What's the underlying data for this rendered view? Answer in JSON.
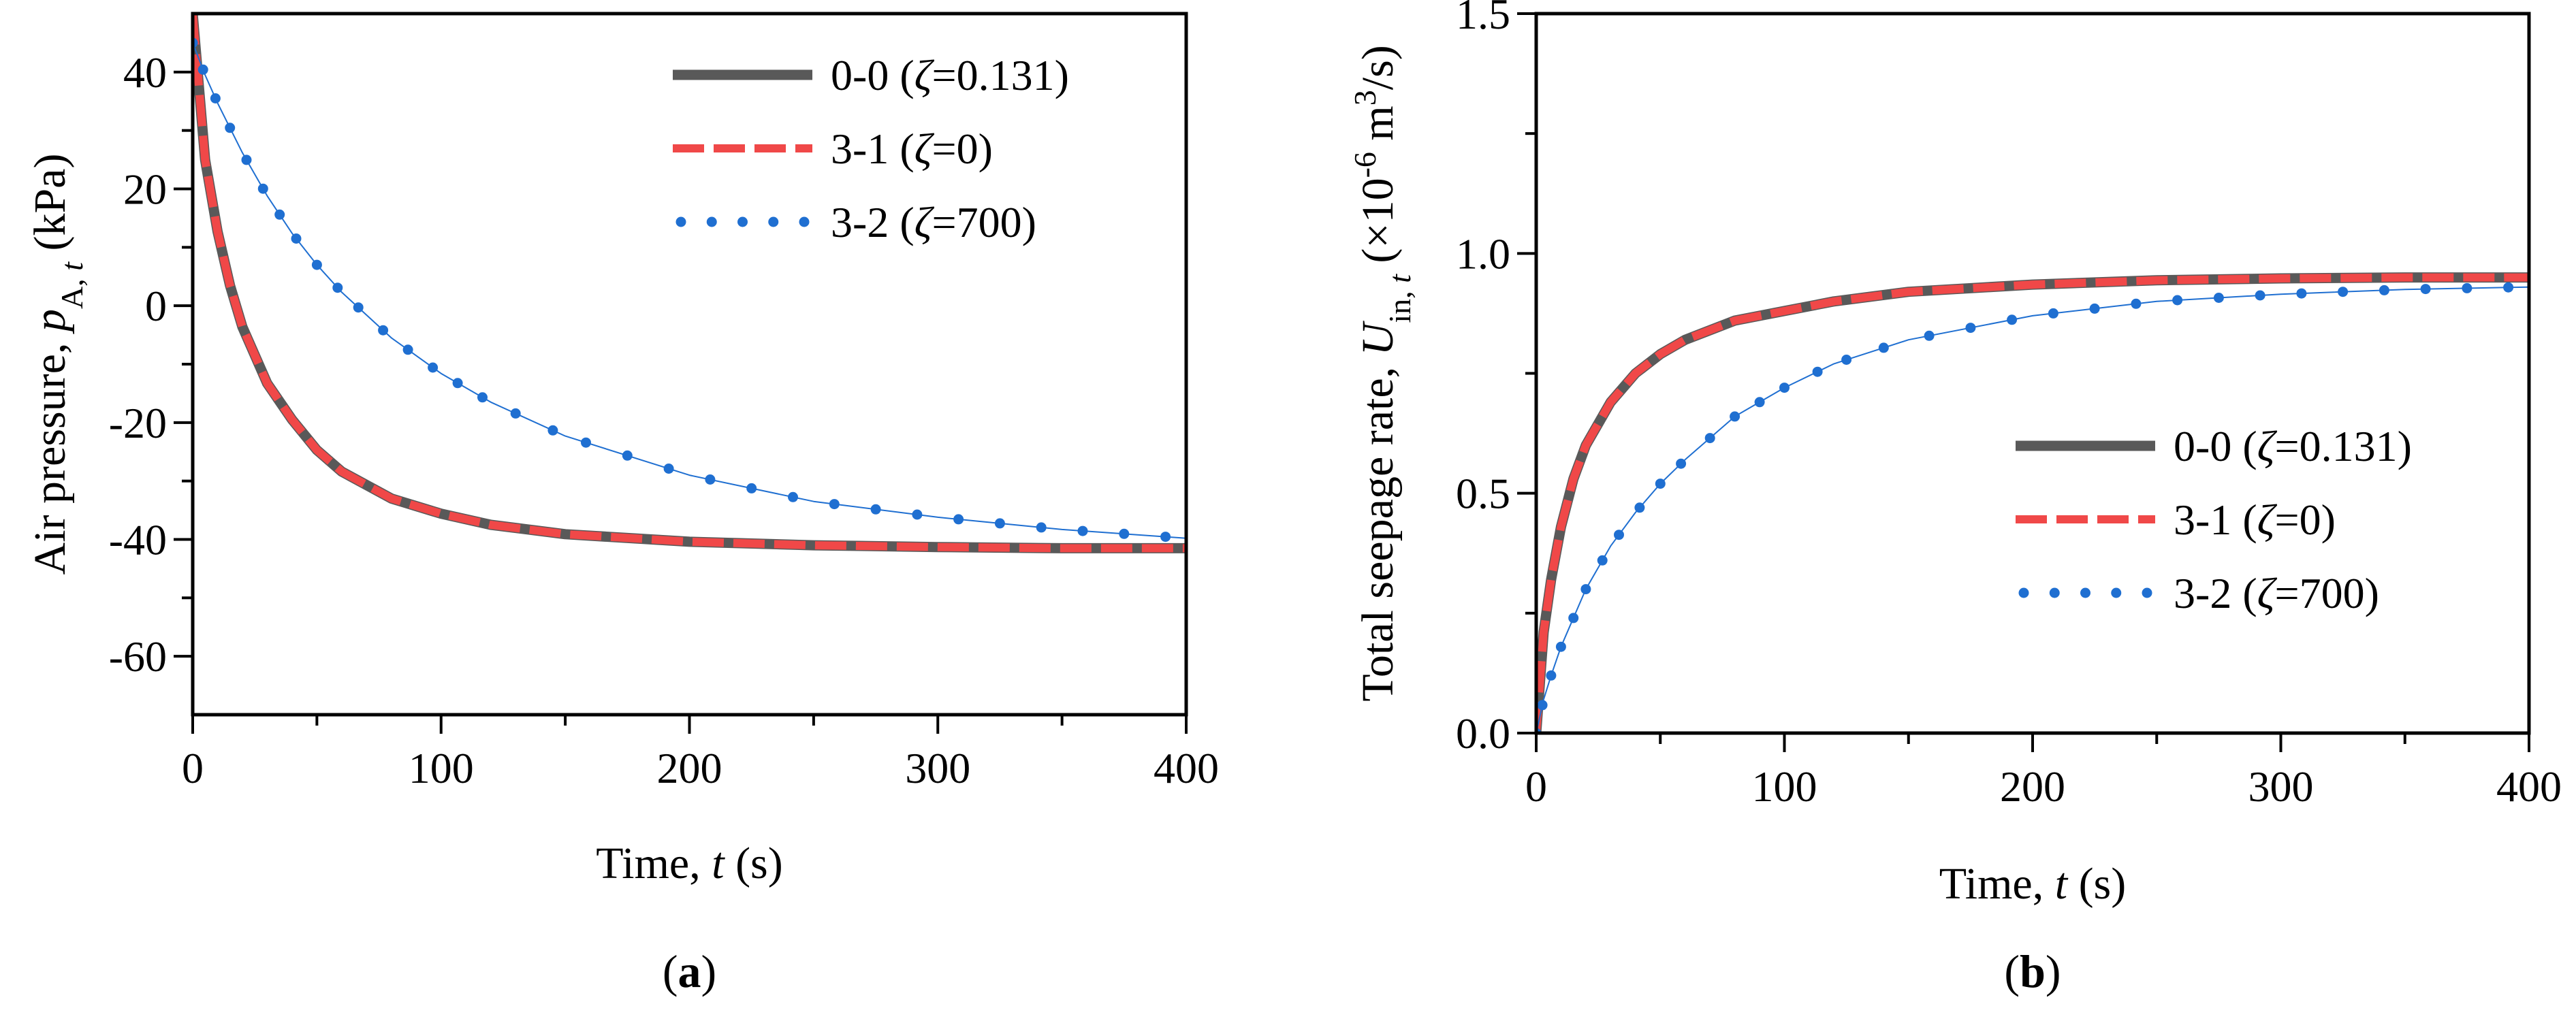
{
  "chart_data": [
    {
      "type": "line",
      "panel_label": "a",
      "xlabel": {
        "text": "Time, ",
        "var": "t",
        "unit": " (s)"
      },
      "ylabel": {
        "text": "Air pressure, ",
        "var": "p",
        "sub": "A, ",
        "sub_var": "t",
        "unit": " (kPa)"
      },
      "xlim": [
        0,
        400
      ],
      "ylim": [
        -70,
        50
      ],
      "xticks": [
        0,
        100,
        200,
        300,
        400
      ],
      "xtick_labels": [
        "0",
        "100",
        "200",
        "300",
        "400"
      ],
      "yticks": [
        -60,
        -40,
        -20,
        0,
        20,
        40
      ],
      "ytick_labels": [
        "-60",
        "-40",
        "-20",
        "0",
        "20",
        "40"
      ],
      "legend_position": "top-right",
      "series": [
        {
          "name": "0-0 (ζ=0.131)",
          "legend": {
            "prefix": "0-0 (",
            "var": "ζ",
            "suffix": "=0.131)"
          },
          "color": "#595959",
          "style": "solid",
          "x": [
            0,
            5,
            10,
            15,
            20,
            30,
            40,
            50,
            60,
            80,
            100,
            120,
            150,
            200,
            250,
            300,
            350,
            400
          ],
          "y": [
            50,
            25,
            12.7,
            3.5,
            -3.6,
            -13.3,
            -19.5,
            -24.7,
            -28.4,
            -33,
            -35.6,
            -37.5,
            -39.1,
            -40.4,
            -41,
            -41.3,
            -41.5,
            -41.5
          ]
        },
        {
          "name": "3-1 (ζ=0)",
          "legend": {
            "prefix": "3-1 (",
            "var": "ζ",
            "suffix": "=0)"
          },
          "color": "#f04848",
          "style": "dashed",
          "x": [
            0,
            5,
            10,
            15,
            20,
            30,
            40,
            50,
            60,
            80,
            100,
            120,
            150,
            200,
            250,
            300,
            350,
            400
          ],
          "y": [
            50,
            25,
            12.7,
            3.5,
            -3.6,
            -13.3,
            -19.5,
            -24.7,
            -28.4,
            -33,
            -35.6,
            -37.5,
            -39.1,
            -40.4,
            -41,
            -41.3,
            -41.5,
            -41.5
          ]
        },
        {
          "name": "3-2 (ζ=700)",
          "legend": {
            "prefix": "3-2 (",
            "var": "ζ",
            "suffix": "=700)"
          },
          "color": "#1f6fd1",
          "style": "dotted",
          "x": [
            0,
            5,
            10,
            20,
            30,
            40,
            50,
            60,
            80,
            100,
            120,
            150,
            200,
            250,
            300,
            350,
            400
          ],
          "y": [
            45,
            39.5,
            34.7,
            26.2,
            18.8,
            12.4,
            7,
            2.3,
            -5.5,
            -11.6,
            -16.5,
            -22.3,
            -29,
            -33.5,
            -36.2,
            -38.3,
            -39.8
          ]
        }
      ]
    },
    {
      "type": "line",
      "panel_label": "b",
      "xlabel": {
        "text": "Time, ",
        "var": "t",
        "unit": " (s)"
      },
      "ylabel": {
        "text": "Total seepage rate, ",
        "var": "U",
        "sub": "in, ",
        "sub_var": "t",
        "unit_pre": " (×10",
        "sup": "-6",
        "unit_mid": " m",
        "sup2": "3",
        "unit_post": "/s)"
      },
      "xlim": [
        0,
        400
      ],
      "ylim": [
        0,
        1.5
      ],
      "xticks": [
        0,
        100,
        200,
        300,
        400
      ],
      "xtick_labels": [
        "0",
        "100",
        "200",
        "300",
        "400"
      ],
      "yticks": [
        0,
        0.5,
        1.0,
        1.5
      ],
      "ytick_labels": [
        "0.0",
        "0.5",
        "1.0",
        "1.5"
      ],
      "legend_position": "center-right",
      "series": [
        {
          "name": "0-0 (ζ=0.131)",
          "legend": {
            "prefix": "0-0 (",
            "var": "ζ",
            "suffix": "=0.131)"
          },
          "color": "#595959",
          "style": "solid",
          "x": [
            0,
            3,
            6,
            10,
            15,
            20,
            30,
            40,
            50,
            60,
            80,
            100,
            120,
            150,
            200,
            250,
            300,
            350,
            400
          ],
          "y": [
            0,
            0.21,
            0.32,
            0.43,
            0.53,
            0.6,
            0.69,
            0.75,
            0.79,
            0.82,
            0.86,
            0.88,
            0.9,
            0.92,
            0.935,
            0.944,
            0.948,
            0.95,
            0.95
          ]
        },
        {
          "name": "3-1 (ζ=0)",
          "legend": {
            "prefix": "3-1 (",
            "var": "ζ",
            "suffix": "=0)"
          },
          "color": "#f04848",
          "style": "dashed",
          "x": [
            0,
            3,
            6,
            10,
            15,
            20,
            30,
            40,
            50,
            60,
            80,
            100,
            120,
            150,
            200,
            250,
            300,
            350,
            400
          ],
          "y": [
            0,
            0.21,
            0.32,
            0.43,
            0.53,
            0.6,
            0.69,
            0.75,
            0.79,
            0.82,
            0.86,
            0.88,
            0.9,
            0.92,
            0.935,
            0.944,
            0.948,
            0.95,
            0.95
          ]
        },
        {
          "name": "3-2 (ζ=700)",
          "legend": {
            "prefix": "3-2 (",
            "var": "ζ",
            "suffix": "=700)"
          },
          "color": "#1f6fd1",
          "style": "dotted",
          "x": [
            0,
            3,
            6,
            10,
            20,
            30,
            40,
            50,
            60,
            80,
            100,
            120,
            150,
            200,
            250,
            300,
            350,
            400
          ],
          "y": [
            0,
            0.07,
            0.12,
            0.18,
            0.3,
            0.39,
            0.46,
            0.52,
            0.57,
            0.66,
            0.72,
            0.77,
            0.82,
            0.87,
            0.9,
            0.915,
            0.925,
            0.93
          ]
        }
      ]
    }
  ]
}
